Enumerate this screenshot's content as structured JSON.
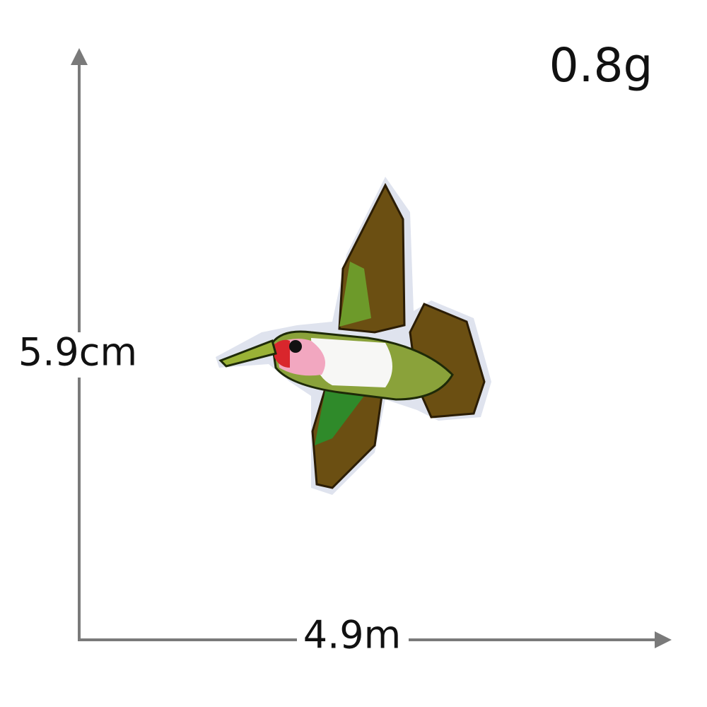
{
  "weight": "0.8g",
  "height_label": "5.9cm",
  "width_label": "4.9m"
}
